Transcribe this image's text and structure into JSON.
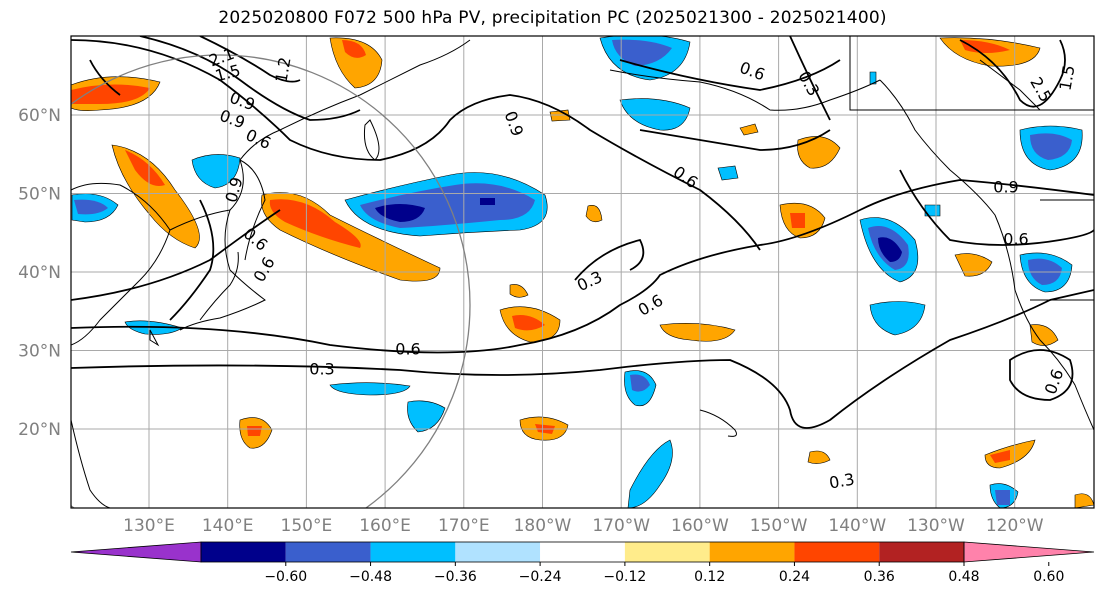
{
  "title": "2025020800 F072 500 hPa PV, precipitation PC (2025021300 - 2025021400)",
  "lat_labels": [
    {
      "text": "60°N",
      "lat": 60
    },
    {
      "text": "50°N",
      "lat": 50
    },
    {
      "text": "40°N",
      "lat": 40
    },
    {
      "text": "30°N",
      "lat": 30
    },
    {
      "text": "20°N",
      "lat": 20
    }
  ],
  "lon_labels": [
    "130°E",
    "140°E",
    "150°E",
    "160°E",
    "170°E",
    "180°W",
    "170°W",
    "160°W",
    "150°W",
    "140°W",
    "130°W",
    "120°W"
  ],
  "colorbar": {
    "colors": [
      "#9932cc",
      "#00008b",
      "#3a5fcd",
      "#00bfff",
      "#b0e2ff",
      "#ffffff",
      "#ffec8b",
      "#ffa500",
      "#ff4500",
      "#b22222",
      "#ff82ab"
    ],
    "ticks": [
      "−0.60",
      "−0.48",
      "−0.36",
      "−0.24",
      "−0.12",
      "0.12",
      "0.24",
      "0.36",
      "0.48",
      "0.60"
    ]
  },
  "contour_labels": [
    "2.1",
    "1.5",
    "1.2",
    "0.9",
    "0.6",
    "0.9",
    "0.6",
    "0.6",
    "0.9",
    "0.6",
    "0.3",
    "0.6",
    "0.9",
    "0.6",
    "0.6",
    "0.3",
    "0.6",
    "0.3",
    "0.3",
    "0.6",
    "2.5",
    "1.5",
    "0.9"
  ]
}
